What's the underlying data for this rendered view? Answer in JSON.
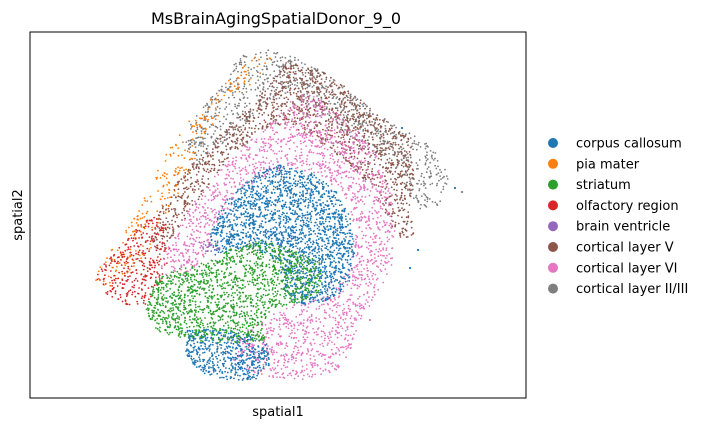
{
  "chart_data": {
    "type": "scatter",
    "title": "MsBrainAgingSpatialDonor_9_0",
    "xlabel": "spatial1",
    "ylabel": "spatial2",
    "xticks": [],
    "yticks": [],
    "legend_position": "right",
    "grid": false,
    "series": [
      {
        "name": "corpus callosum",
        "color": "#1f77b4"
      },
      {
        "name": "pia mater",
        "color": "#ff7f0e"
      },
      {
        "name": "striatum",
        "color": "#2ca02c"
      },
      {
        "name": "olfactory region",
        "color": "#d62728"
      },
      {
        "name": "brain ventricle",
        "color": "#9467bd"
      },
      {
        "name": "cortical layer V",
        "color": "#8c564b"
      },
      {
        "name": "cortical layer VI",
        "color": "#e377c2"
      },
      {
        "name": "cortical layer II/III",
        "color": "#7f7f7f"
      }
    ]
  }
}
